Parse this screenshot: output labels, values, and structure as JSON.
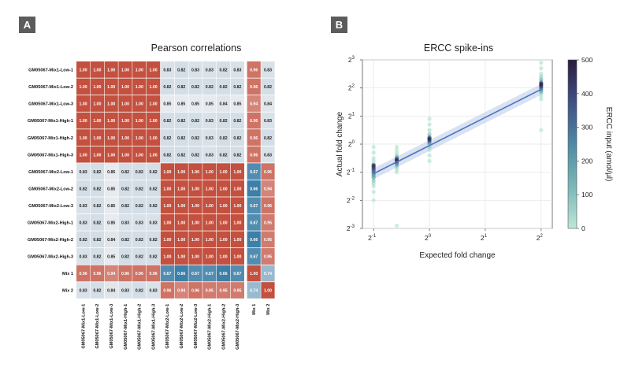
{
  "panels": [
    {
      "label": "A"
    },
    {
      "label": "B"
    }
  ],
  "chart_data": [
    {
      "type": "heatmap",
      "title": "Pearson correlations",
      "labels": [
        "GM05067-Mix1-Low-1",
        "GM05067-Mix1-Low-2",
        "GM05067-Mix1-Low-3",
        "GM05067-Mix1-High-1",
        "GM05067-Mix1-High-2",
        "GM05067-Mix1-High-3",
        "GM05067-Mix2-Low-1",
        "GM05067-Mix2-Low-2",
        "GM05067-Mix2-Low-3",
        "GM05067-Mix2-High-1",
        "GM05067-Mix2-High-2",
        "GM05067-Mix2-High-3",
        "Mix 1",
        "Mix 2"
      ],
      "matrix": [
        [
          "1.00",
          "1.00",
          "1.00",
          "1.00",
          "1.00",
          "1.00",
          "0.83",
          "0.82",
          "0.83",
          "0.83",
          "0.82",
          "0.83",
          "0.96",
          "0.83"
        ],
        [
          "1.00",
          "1.00",
          "1.00",
          "1.00",
          "1.00",
          "1.00",
          "0.82",
          "0.82",
          "0.82",
          "0.82",
          "0.82",
          "0.82",
          "0.96",
          "0.82"
        ],
        [
          "1.00",
          "1.00",
          "1.00",
          "1.00",
          "1.00",
          "1.00",
          "0.85",
          "0.85",
          "0.85",
          "0.85",
          "0.84",
          "0.85",
          "0.94",
          "0.84"
        ],
        [
          "1.00",
          "1.00",
          "1.00",
          "1.00",
          "1.00",
          "1.00",
          "0.82",
          "0.82",
          "0.82",
          "0.83",
          "0.82",
          "0.82",
          "0.96",
          "0.83"
        ],
        [
          "1.00",
          "1.00",
          "1.00",
          "1.00",
          "1.00",
          "1.00",
          "0.82",
          "0.82",
          "0.82",
          "0.83",
          "0.82",
          "0.82",
          "0.96",
          "0.82"
        ],
        [
          "1.00",
          "1.00",
          "1.00",
          "1.00",
          "1.00",
          "1.00",
          "0.82",
          "0.82",
          "0.82",
          "0.83",
          "0.82",
          "0.82",
          "0.96",
          "0.83"
        ],
        [
          "0.83",
          "0.82",
          "0.85",
          "0.82",
          "0.82",
          "0.82",
          "1.00",
          "1.00",
          "1.00",
          "1.00",
          "1.00",
          "1.00",
          "0.67",
          "0.96"
        ],
        [
          "0.82",
          "0.82",
          "0.85",
          "0.82",
          "0.82",
          "0.82",
          "1.00",
          "1.00",
          "1.00",
          "1.00",
          "1.00",
          "1.00",
          "0.66",
          "0.94"
        ],
        [
          "0.83",
          "0.82",
          "0.85",
          "0.82",
          "0.82",
          "0.82",
          "1.00",
          "1.00",
          "1.00",
          "1.00",
          "1.00",
          "1.00",
          "0.67",
          "0.96"
        ],
        [
          "0.83",
          "0.82",
          "0.85",
          "0.83",
          "0.83",
          "0.83",
          "1.00",
          "1.00",
          "1.00",
          "1.00",
          "1.00",
          "1.00",
          "0.67",
          "0.95"
        ],
        [
          "0.82",
          "0.82",
          "0.84",
          "0.82",
          "0.82",
          "0.82",
          "1.00",
          "1.00",
          "1.00",
          "1.00",
          "1.00",
          "1.00",
          "0.66",
          "0.95"
        ],
        [
          "0.83",
          "0.82",
          "0.85",
          "0.82",
          "0.82",
          "0.82",
          "1.00",
          "1.00",
          "1.00",
          "1.00",
          "1.00",
          "1.00",
          "0.67",
          "0.95"
        ],
        [
          "0.96",
          "0.96",
          "0.94",
          "0.96",
          "0.96",
          "0.96",
          "0.67",
          "0.66",
          "0.67",
          "0.67",
          "0.66",
          "0.67",
          "1.00",
          "0.74"
        ],
        [
          "0.83",
          "0.82",
          "0.84",
          "0.83",
          "0.82",
          "0.83",
          "0.96",
          "0.94",
          "0.96",
          "0.95",
          "0.95",
          "0.95",
          "0.74",
          "1.00"
        ]
      ]
    },
    {
      "type": "scatter",
      "title": "ERCC spike-ins",
      "xlabel": "Expected fold change",
      "ylabel": "Actual fold change",
      "x_scale": "log2",
      "y_scale": "log2",
      "xlim_log2": [
        -1.2,
        2.2
      ],
      "ylim_log2": [
        -3,
        3
      ],
      "xticks": [
        {
          "base": "2",
          "exp": "-1",
          "v": -1
        },
        {
          "base": "2",
          "exp": "0",
          "v": 0
        },
        {
          "base": "2",
          "exp": "1",
          "v": 1
        },
        {
          "base": "2",
          "exp": "2",
          "v": 2
        }
      ],
      "yticks": [
        {
          "base": "2",
          "exp": "-3",
          "v": -3
        },
        {
          "base": "2",
          "exp": "-2",
          "v": -2
        },
        {
          "base": "2",
          "exp": "-1",
          "v": -1
        },
        {
          "base": "2",
          "exp": "0",
          "v": 0
        },
        {
          "base": "2",
          "exp": "1",
          "v": 1
        },
        {
          "base": "2",
          "exp": "2",
          "v": 2
        },
        {
          "base": "2",
          "exp": "3",
          "v": 3
        }
      ],
      "regression": {
        "x0": -1.0,
        "y0": -1.05,
        "x1": 2.0,
        "y1": 1.95,
        "band": 0.12
      },
      "colorbar": {
        "label": "ERCC input (amol/µl)",
        "min": 0,
        "max": 500,
        "ticks": [
          "0",
          "100",
          "200",
          "300",
          "400",
          "500"
        ]
      },
      "groups": [
        {
          "x": -1.0,
          "points": [
            [
              -1.5,
              5
            ],
            [
              -1.4,
              30
            ],
            [
              -1.3,
              80
            ],
            [
              -1.2,
              120
            ],
            [
              -1.15,
              150
            ],
            [
              -1.1,
              180
            ],
            [
              -1.05,
              220
            ],
            [
              -1.0,
              260
            ],
            [
              -0.95,
              300
            ],
            [
              -0.9,
              340
            ],
            [
              -0.85,
              380
            ],
            [
              -0.8,
              420
            ],
            [
              -0.75,
              460
            ],
            [
              -0.7,
              20
            ],
            [
              -0.6,
              10
            ],
            [
              -0.5,
              5
            ],
            [
              -0.3,
              3
            ],
            [
              -1.7,
              2
            ],
            [
              -2.0,
              1
            ],
            [
              -0.1,
              2
            ]
          ]
        },
        {
          "x": -0.585,
          "points": [
            [
              -2.9,
              1
            ],
            [
              -1.0,
              5
            ],
            [
              -0.9,
              20
            ],
            [
              -0.8,
              60
            ],
            [
              -0.75,
              120
            ],
            [
              -0.7,
              200
            ],
            [
              -0.65,
              300
            ],
            [
              -0.6,
              400
            ],
            [
              -0.55,
              480
            ],
            [
              -0.5,
              250
            ],
            [
              -0.45,
              100
            ],
            [
              -0.4,
              40
            ],
            [
              -0.3,
              10
            ],
            [
              -0.2,
              3
            ],
            [
              -0.1,
              2
            ]
          ]
        },
        {
          "x": 0.0,
          "points": [
            [
              -0.6,
              2
            ],
            [
              -0.4,
              5
            ],
            [
              -0.2,
              20
            ],
            [
              -0.1,
              60
            ],
            [
              0.0,
              120
            ],
            [
              0.05,
              200
            ],
            [
              0.1,
              300
            ],
            [
              0.15,
              420
            ],
            [
              0.2,
              480
            ],
            [
              0.25,
              250
            ],
            [
              0.35,
              80
            ],
            [
              0.5,
              20
            ],
            [
              0.7,
              5
            ],
            [
              0.9,
              2
            ]
          ]
        },
        {
          "x": 2.0,
          "points": [
            [
              0.5,
              1
            ],
            [
              1.6,
              3
            ],
            [
              1.7,
              10
            ],
            [
              1.8,
              30
            ],
            [
              1.85,
              80
            ],
            [
              1.9,
              150
            ],
            [
              1.95,
              220
            ],
            [
              2.0,
              300
            ],
            [
              2.05,
              380
            ],
            [
              2.1,
              450
            ],
            [
              2.15,
              490
            ],
            [
              2.2,
              260
            ],
            [
              2.3,
              120
            ],
            [
              2.4,
              50
            ],
            [
              2.5,
              15
            ],
            [
              2.7,
              5
            ],
            [
              2.9,
              2
            ]
          ]
        }
      ]
    }
  ]
}
